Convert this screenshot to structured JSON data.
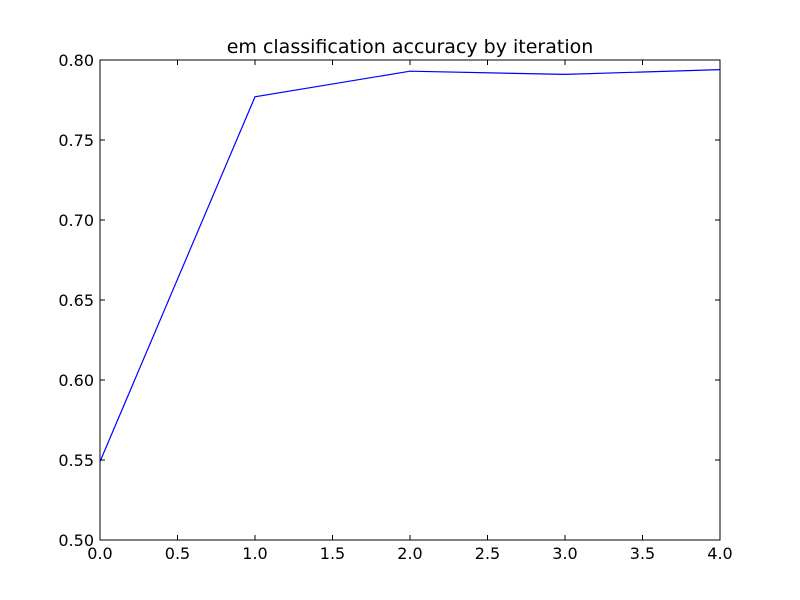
{
  "chart_data": {
    "type": "line",
    "title": "em classification accuracy by iteration",
    "xlabel": "",
    "ylabel": "",
    "xlim": [
      0.0,
      4.0
    ],
    "ylim": [
      0.5,
      0.8
    ],
    "x_ticks": [
      "0.0",
      "0.5",
      "1.0",
      "1.5",
      "2.0",
      "2.5",
      "3.0",
      "3.5",
      "4.0"
    ],
    "y_ticks": [
      "0.50",
      "0.55",
      "0.60",
      "0.65",
      "0.70",
      "0.75",
      "0.80"
    ],
    "grid": false,
    "series": [
      {
        "color": "#0000ff",
        "x": [
          0,
          1,
          2,
          3,
          4
        ],
        "y": [
          0.549,
          0.777,
          0.793,
          0.791,
          0.794
        ]
      }
    ]
  }
}
